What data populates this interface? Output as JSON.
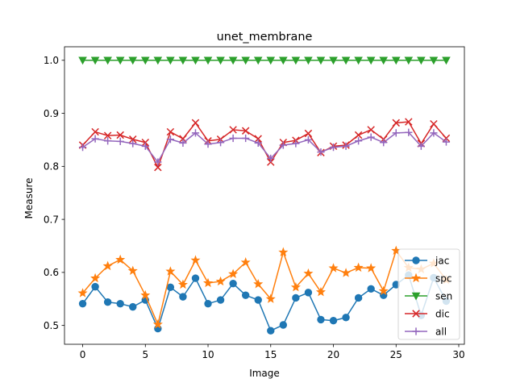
{
  "chart_data": {
    "type": "line",
    "title": "unet_membrane",
    "xlabel": "Image",
    "ylabel": "Measure",
    "xlim": [
      -1.45,
      30.45
    ],
    "ylim": [
      0.4645,
      1.0255
    ],
    "xticks": [
      0,
      5,
      10,
      15,
      20,
      25,
      30
    ],
    "yticks": [
      0.5,
      0.6,
      0.7,
      0.8,
      0.9,
      1.0
    ],
    "x_tick_labels": [
      "0",
      "5",
      "10",
      "15",
      "20",
      "25",
      "30"
    ],
    "y_tick_labels": [
      "0.5",
      "0.6",
      "0.7",
      "0.8",
      "0.9",
      "1.0"
    ],
    "grid": false,
    "legend_position": "lower-right",
    "x": [
      0,
      1,
      2,
      3,
      4,
      5,
      6,
      7,
      8,
      9,
      10,
      11,
      12,
      13,
      14,
      15,
      16,
      17,
      18,
      19,
      20,
      21,
      22,
      23,
      24,
      25,
      26,
      27,
      28,
      29
    ],
    "series": [
      {
        "name": "jac",
        "color": "#1f77b4",
        "marker": "circle",
        "values": [
          0.541,
          0.573,
          0.544,
          0.541,
          0.535,
          0.548,
          0.494,
          0.572,
          0.554,
          0.589,
          0.541,
          0.548,
          0.579,
          0.557,
          0.548,
          0.49,
          0.501,
          0.552,
          0.562,
          0.511,
          0.509,
          0.515,
          0.552,
          0.569,
          0.557,
          0.577,
          0.595,
          0.519,
          0.59,
          0.546
        ]
      },
      {
        "name": "spc",
        "color": "#ff7f0e",
        "marker": "star",
        "values": [
          0.561,
          0.589,
          0.612,
          0.624,
          0.603,
          0.557,
          0.502,
          0.602,
          0.577,
          0.623,
          0.58,
          0.583,
          0.597,
          0.619,
          0.578,
          0.55,
          0.638,
          0.572,
          0.598,
          0.563,
          0.608,
          0.599,
          0.609,
          0.608,
          0.565,
          0.641,
          0.609,
          0.606,
          0.617,
          0.586
        ]
      },
      {
        "name": "sen",
        "color": "#2ca02c",
        "marker": "triangle-down",
        "values": [
          1.0,
          1.0,
          1.0,
          1.0,
          1.0,
          1.0,
          1.0,
          1.0,
          1.0,
          1.0,
          1.0,
          1.0,
          1.0,
          1.0,
          1.0,
          1.0,
          1.0,
          1.0,
          1.0,
          1.0,
          1.0,
          1.0,
          1.0,
          1.0,
          1.0,
          1.0,
          1.0,
          1.0,
          1.0,
          1.0
        ]
      },
      {
        "name": "dic",
        "color": "#d62728",
        "marker": "x",
        "values": [
          0.84,
          0.865,
          0.858,
          0.859,
          0.851,
          0.845,
          0.798,
          0.865,
          0.852,
          0.882,
          0.848,
          0.851,
          0.869,
          0.867,
          0.852,
          0.808,
          0.845,
          0.849,
          0.862,
          0.826,
          0.838,
          0.84,
          0.859,
          0.869,
          0.851,
          0.882,
          0.884,
          0.843,
          0.88,
          0.853
        ]
      },
      {
        "name": "all",
        "color": "#9467bd",
        "marker": "plus",
        "values": [
          0.836,
          0.852,
          0.848,
          0.847,
          0.843,
          0.838,
          0.808,
          0.851,
          0.844,
          0.863,
          0.842,
          0.845,
          0.853,
          0.853,
          0.844,
          0.815,
          0.84,
          0.843,
          0.85,
          0.827,
          0.836,
          0.838,
          0.848,
          0.855,
          0.845,
          0.863,
          0.864,
          0.838,
          0.863,
          0.846
        ]
      }
    ]
  }
}
